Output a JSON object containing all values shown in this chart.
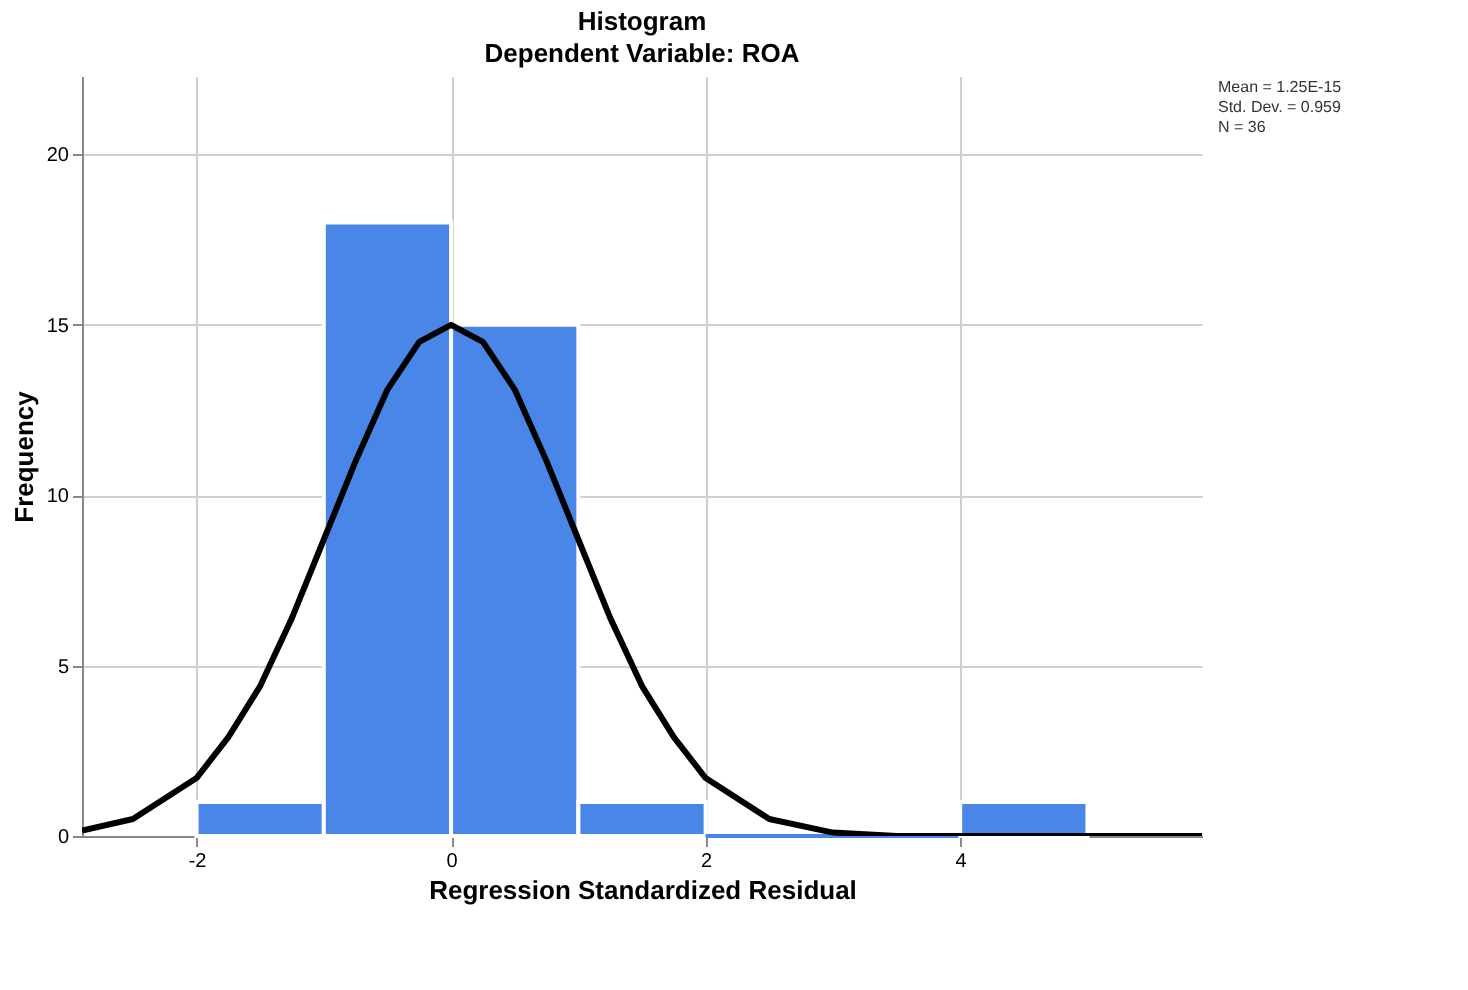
{
  "chart_data": {
    "type": "histogram",
    "title": "Histogram",
    "subtitle": "Dependent Variable: ROA",
    "xlabel": "Regression Standardized Residual",
    "ylabel": "Frequency",
    "bins": [
      -2,
      -1,
      0,
      1,
      2,
      3,
      4,
      5
    ],
    "values": [
      1,
      18,
      15,
      1,
      0,
      0,
      1
    ],
    "color": "#4a86e8",
    "series": [
      {
        "type": "line",
        "color": "#000000",
        "x": [
          -2.9,
          -2.5,
          -2,
          -1.75,
          -1.5,
          -1.25,
          -1,
          -0.75,
          -0.5,
          -0.25,
          0,
          0.25,
          0.5,
          0.75,
          1,
          1.25,
          1.5,
          1.75,
          2,
          2.5,
          3,
          3.5,
          4,
          5,
          5.9
        ],
        "values": [
          0.16,
          0.5,
          1.7,
          2.9,
          4.4,
          6.4,
          8.7,
          11,
          13.1,
          14.5,
          15,
          14.5,
          13.1,
          11,
          8.7,
          6.4,
          4.4,
          2.9,
          1.7,
          0.5,
          0.1,
          0,
          0,
          0,
          0
        ]
      }
    ],
    "xlim": [
      -2.9,
      5.9
    ],
    "xticks": [
      -2,
      0,
      2,
      4
    ],
    "ylim": [
      0,
      22.3
    ],
    "yticks": [
      0,
      5,
      10,
      15,
      20
    ],
    "grid": true,
    "annotations": [
      "Mean = 1.25E-15",
      "Std. Dev. = 0.959",
      "N = 36"
    ]
  }
}
